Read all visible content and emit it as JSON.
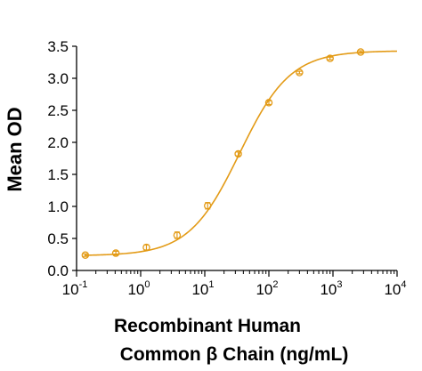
{
  "chart_data": {
    "type": "scatter",
    "x_scale": "log",
    "xlim": [
      0.1,
      10000
    ],
    "ylim": [
      0,
      3.5
    ],
    "x_ticks": [
      0.1,
      1,
      10,
      100,
      1000,
      10000
    ],
    "x_tick_labels": [
      {
        "base": "10",
        "exp": "-1"
      },
      {
        "base": "10",
        "exp": "0"
      },
      {
        "base": "10",
        "exp": "1"
      },
      {
        "base": "10",
        "exp": "2"
      },
      {
        "base": "10",
        "exp": "3"
      },
      {
        "base": "10",
        "exp": "4"
      }
    ],
    "y_ticks": [
      "0.0",
      "0.5",
      "1.0",
      "1.5",
      "2.0",
      "2.5",
      "3.0",
      "3.5"
    ],
    "ylabel": "Mean OD",
    "xlabel_line1": "Recombinant Human",
    "xlabel_line2": "Common β Chain (ng/mL)",
    "grid": false,
    "legend": "none",
    "series_color": "#e39b17",
    "points": [
      {
        "x": 0.137,
        "y": 0.24,
        "err": 0.02
      },
      {
        "x": 0.41,
        "y": 0.27,
        "err": 0.03
      },
      {
        "x": 1.23,
        "y": 0.36,
        "err": 0.04
      },
      {
        "x": 3.7,
        "y": 0.55,
        "err": 0.05
      },
      {
        "x": 11.1,
        "y": 1.01,
        "err": 0.05
      },
      {
        "x": 33.3,
        "y": 1.82,
        "err": 0.03
      },
      {
        "x": 100,
        "y": 2.62,
        "err": 0.03
      },
      {
        "x": 300,
        "y": 3.09,
        "err": 0.02
      },
      {
        "x": 900,
        "y": 3.31,
        "err": 0.02
      },
      {
        "x": 2700,
        "y": 3.41,
        "err": 0.02
      }
    ],
    "fit": {
      "bottom": 0.23,
      "top": 3.43,
      "ec50": 35,
      "hill": 1.1
    }
  }
}
